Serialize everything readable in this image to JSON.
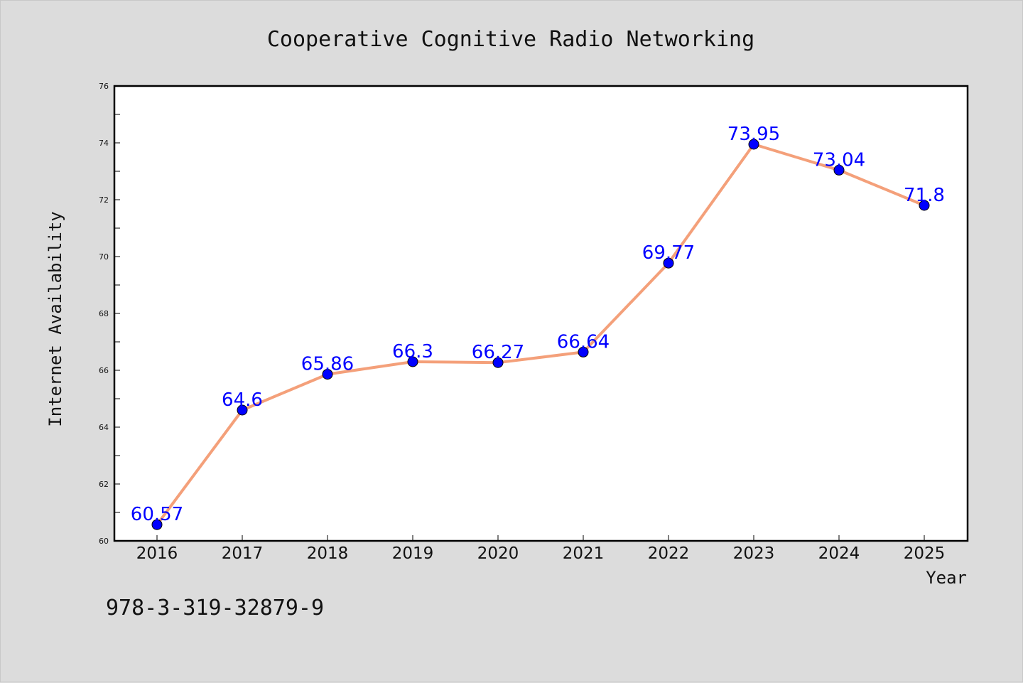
{
  "chart_data": {
    "type": "line",
    "title": "Cooperative Cognitive Radio Networking",
    "xlabel": "Year",
    "ylabel": "Internet Availability",
    "categories": [
      "2016",
      "2017",
      "2018",
      "2019",
      "2020",
      "2021",
      "2022",
      "2023",
      "2024",
      "2025"
    ],
    "series": [
      {
        "values": [
          60.57,
          64.6,
          65.86,
          66.3,
          66.27,
          66.64,
          69.77,
          73.95,
          73.04,
          71.8
        ],
        "data_labels": [
          "60.57",
          "64.6",
          "65.86",
          "66.3",
          "66.27",
          "66.64",
          "69.77",
          "73.95",
          "73.04",
          "71.8"
        ],
        "line_color": "#f4a07a",
        "marker_color": "#0000ff"
      }
    ],
    "ylim": [
      60,
      76
    ],
    "yticks": [
      "60",
      "62",
      "64",
      "66",
      "68",
      "70",
      "72",
      "74",
      "76"
    ],
    "grid": false,
    "legend": "none"
  },
  "footer": {
    "isbn": "978-3-319-32879-9"
  },
  "colors": {
    "background": "#dcdcdc",
    "plot_background": "#ffffff",
    "axis": "#000000",
    "label_color": "#0000ff"
  }
}
